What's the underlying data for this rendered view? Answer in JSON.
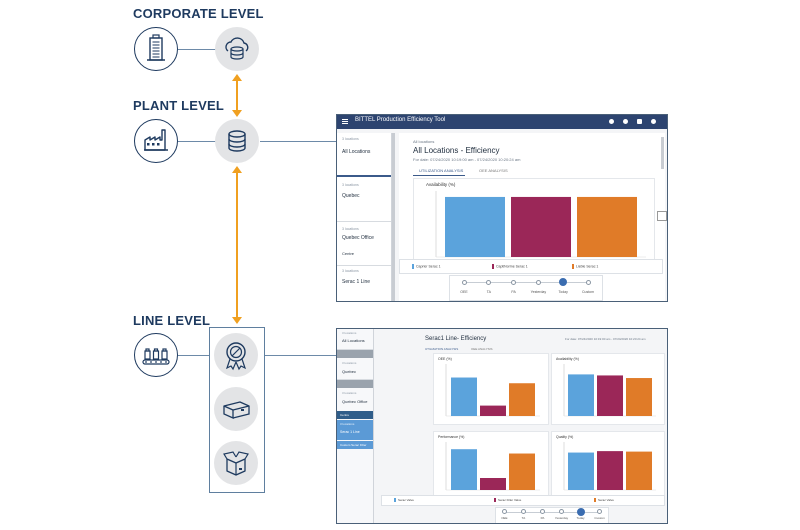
{
  "levels": {
    "corporate": "CORPORATE LEVEL",
    "plant": "PLANT LEVEL",
    "line": "LINE LEVEL"
  },
  "icons": {
    "corporate": [
      "building-icon",
      "cloud-database-icon"
    ],
    "plant": [
      "factory-icon",
      "database-icon"
    ],
    "line": [
      "production-line-icon",
      "quality-badge-icon",
      "box-icon",
      "open-box-icon"
    ]
  },
  "colors": {
    "navy": "#1e3a5f",
    "connector": "#f0a020",
    "bar_blue": "#5ba3dc",
    "bar_crimson": "#9b2758",
    "bar_orange": "#e07b28"
  },
  "plant_screen": {
    "app_title": "BITTEL Production Efficiency Tool",
    "sidebar": [
      {
        "num": "3 locations",
        "label": "All Locations"
      },
      {
        "num": "3 locations",
        "label": "Quebec"
      },
      {
        "num": "3 locations",
        "label": "Quebec Office"
      },
      {
        "num": "",
        "label": "Centre"
      },
      {
        "num": "3 locations",
        "label": "Serac 1 Line"
      }
    ],
    "breadcrumb": "All locations",
    "title": "All Locations - Efficiency",
    "subtitle": "For date: 07/24/2020 10:19:00 am - 07/24/2020 10:20:24 am",
    "tabs": [
      "UTILIZATION ANALYSIS",
      "OEE ANALYSIS"
    ],
    "chart_data": {
      "type": "bar",
      "title": "Availability (%)",
      "categories": [
        "Caprier Serac 1",
        "CaptiNorme Serac 1",
        "Lieble Serac 1"
      ],
      "values": [
        91,
        91,
        91
      ],
      "ylim": [
        0,
        100
      ]
    },
    "steps": [
      "OEE",
      "TA",
      "PA",
      "Yesterday",
      "Today",
      "Custom"
    ],
    "selected_step": 4
  },
  "line_screen": {
    "sidebar": [
      {
        "num": "3 locations",
        "label": "All Locations"
      },
      {
        "num": "3 locations",
        "label": "Quebec"
      },
      {
        "num": "3 locations",
        "label": "Quebec Office"
      },
      {
        "num": "",
        "label": "Centre"
      },
      {
        "num": "3 locations",
        "label": "Serac 1 Line"
      },
      {
        "num": "",
        "label": "Custom Serac Filter"
      }
    ],
    "title": "Serac1 Line- Efficiency",
    "subtitle": "For date: 07/24/2020 10:19:00 am - 07/24/2020 10:20:24 am",
    "tabs": [
      "UTILIZATION ANALYSIS",
      "OEE ANALYSIS"
    ],
    "chart_data": [
      {
        "type": "bar",
        "title": "OEE (%)",
        "categories": [
          "Serac 1",
          "Serac 2",
          "Serac 3"
        ],
        "values": [
          74,
          20,
          63
        ],
        "ylim": [
          0,
          100
        ]
      },
      {
        "type": "bar",
        "title": "Availability (%)",
        "categories": [
          "Serac 1",
          "Serac 2",
          "Serac 3"
        ],
        "values": [
          80,
          78,
          73
        ],
        "ylim": [
          0,
          100
        ]
      },
      {
        "type": "bar",
        "title": "Performance (%)",
        "categories": [
          "Serac 1",
          "Serac 2",
          "Serac 3"
        ],
        "values": [
          85,
          25,
          76
        ],
        "ylim": [
          0,
          100
        ]
      },
      {
        "type": "bar",
        "title": "Quality (%)",
        "categories": [
          "Serac 1",
          "Serac 2",
          "Serac 3"
        ],
        "values": [
          78,
          81,
          80
        ],
        "ylim": [
          0,
          100
        ]
      }
    ],
    "legend": [
      "Serac Valve",
      "Serac Filler Valve",
      "Serac Valve"
    ],
    "steps": [
      "OEE",
      "TA",
      "PA",
      "Yesterday",
      "Today",
      "Custom"
    ],
    "selected_step": 4
  }
}
